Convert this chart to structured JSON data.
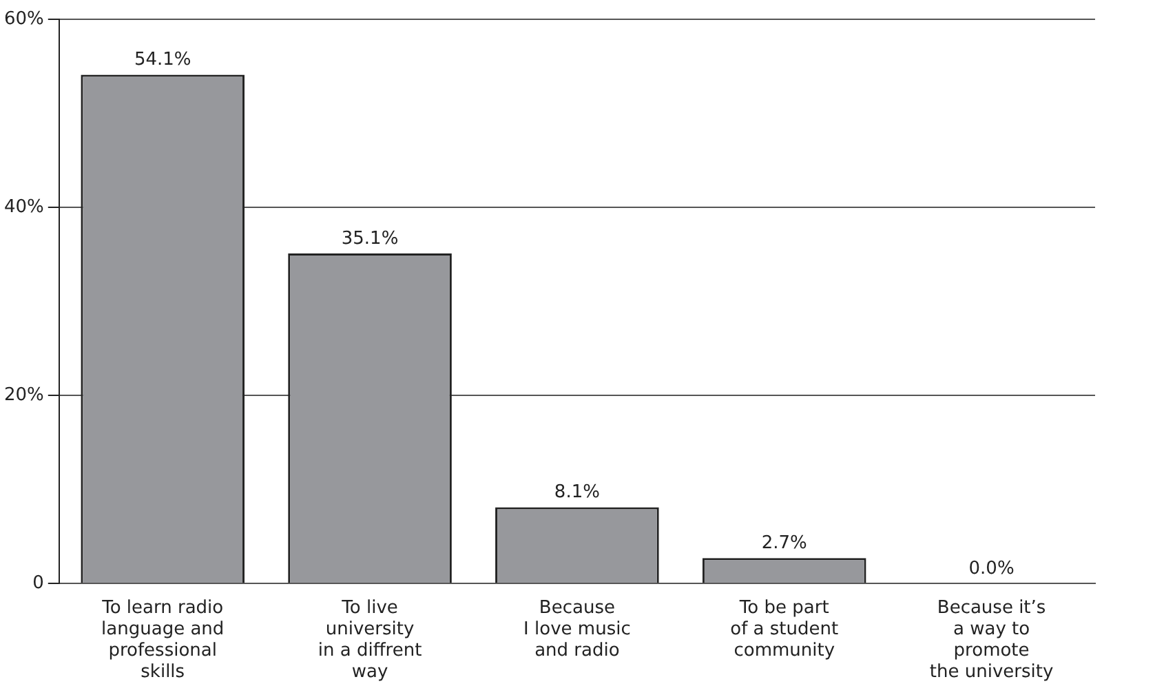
{
  "chart_data": {
    "type": "bar",
    "categories": [
      "To learn radio\nlanguage and\nprofessional\nskills",
      "To live\nuniversity\nin a diffrent\nway",
      "Because\nI love music\nand radio",
      "To be part\nof a student\ncommunity",
      "Because it’s\na way to\npromote\nthe university"
    ],
    "values": [
      54.1,
      35.1,
      8.1,
      2.7,
      0
    ],
    "value_labels": [
      "54.1%",
      "35.1%",
      "8.1%",
      "2.7%",
      "0.0%"
    ],
    "color": "#97989c",
    "ylim": [
      0,
      60
    ],
    "yticks": [
      {
        "value": 0,
        "label": "0"
      },
      {
        "value": 20,
        "label": "20%"
      },
      {
        "value": 40,
        "label": "40%"
      },
      {
        "value": 60,
        "label": "60%"
      }
    ],
    "grid": "y",
    "legend": false
  }
}
